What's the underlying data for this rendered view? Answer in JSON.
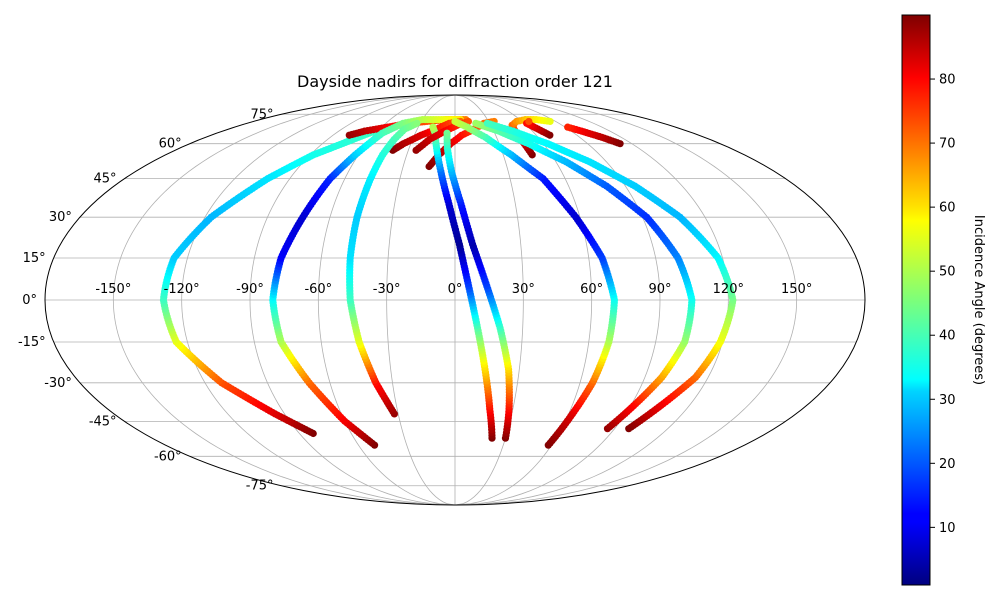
{
  "chart_data": {
    "type": "scatter",
    "projection": "mollweide",
    "title": "Dayside nadirs for diffraction order 121",
    "xlabel": "",
    "ylabel": "",
    "xlim": [
      -180,
      180
    ],
    "ylim": [
      -90,
      90
    ],
    "grid": true,
    "x_ticks": [
      "-150°",
      "-120°",
      "-90°",
      "-60°",
      "-30°",
      "0°",
      "30°",
      "60°",
      "90°",
      "120°",
      "150°"
    ],
    "x_tick_values": [
      -150,
      -120,
      -90,
      -60,
      -30,
      0,
      30,
      60,
      90,
      120,
      150
    ],
    "y_ticks": [
      "75°",
      "60°",
      "45°",
      "30°",
      "15°",
      "0°",
      "-15°",
      "-30°",
      "-45°",
      "-60°",
      "-75°"
    ],
    "y_tick_values": [
      75,
      60,
      45,
      30,
      15,
      0,
      -15,
      -30,
      -45,
      -60,
      -75
    ],
    "colorbar": {
      "label": "Incidence Angle (degrees)",
      "colormap": "jet",
      "range": [
        1,
        90
      ],
      "ticks": [
        "10",
        "20",
        "30",
        "40",
        "50",
        "60",
        "70",
        "80"
      ],
      "tick_values": [
        10,
        20,
        30,
        40,
        50,
        60,
        70,
        80
      ]
    },
    "series": [
      {
        "points": [
          [
            -82,
            -50,
            90
          ],
          [
            -95,
            -42,
            82
          ],
          [
            -112,
            -30,
            72
          ],
          [
            -125,
            -15,
            55
          ],
          [
            -128,
            0,
            40
          ],
          [
            -126,
            15,
            30
          ],
          [
            -117,
            30,
            28
          ],
          [
            -102,
            45,
            32
          ],
          [
            -88,
            55,
            36
          ],
          [
            -72,
            62,
            38
          ],
          [
            -60,
            67,
            40
          ]
        ]
      },
      {
        "points": [
          [
            -78,
            64,
            88
          ],
          [
            -70,
            66,
            85
          ],
          [
            -55,
            68,
            80
          ],
          [
            -40,
            70,
            76
          ],
          [
            -25,
            71,
            72
          ],
          [
            -8,
            72,
            70
          ],
          [
            10,
            72,
            68
          ]
        ]
      },
      {
        "points": [
          [
            -50,
            -55,
            90
          ],
          [
            -60,
            -45,
            80
          ],
          [
            -70,
            -30,
            70
          ],
          [
            -78,
            -15,
            50
          ],
          [
            -80,
            0,
            35
          ],
          [
            -78,
            15,
            12
          ],
          [
            -73,
            30,
            8
          ],
          [
            -68,
            45,
            15
          ],
          [
            -62,
            55,
            30
          ],
          [
            -55,
            65,
            40
          ],
          [
            -45,
            70,
            45
          ],
          [
            -30,
            72,
            50
          ],
          [
            -10,
            72,
            55
          ],
          [
            5,
            72,
            58
          ]
        ]
      },
      {
        "points": [
          [
            -40,
            57,
            90
          ],
          [
            -35,
            60,
            86
          ],
          [
            -25,
            64,
            82
          ],
          [
            -15,
            67,
            78
          ],
          [
            -5,
            70,
            74
          ],
          [
            5,
            71,
            70
          ]
        ]
      },
      {
        "points": [
          [
            -32,
            -42,
            88
          ],
          [
            -38,
            -30,
            78
          ],
          [
            -43,
            -15,
            55
          ],
          [
            -46,
            0,
            40
          ],
          [
            -47,
            15,
            32
          ],
          [
            -47,
            30,
            30
          ],
          [
            -46,
            45,
            33
          ],
          [
            -45,
            55,
            37
          ],
          [
            -43,
            62,
            40
          ],
          [
            -40,
            67,
            43
          ],
          [
            -33,
            70,
            46
          ]
        ]
      },
      {
        "points": [
          [
            -15,
            50,
            90
          ],
          [
            -10,
            55,
            86
          ],
          [
            -3,
            60,
            82
          ],
          [
            5,
            64,
            78
          ],
          [
            15,
            67,
            74
          ],
          [
            25,
            70,
            70
          ],
          [
            35,
            71,
            68
          ]
        ]
      },
      {
        "points": [
          [
            22,
            -52,
            90
          ],
          [
            18,
            -40,
            78
          ],
          [
            14,
            -25,
            60
          ],
          [
            10,
            -10,
            42
          ],
          [
            6,
            5,
            18
          ],
          [
            2,
            20,
            3
          ],
          [
            -3,
            35,
            8
          ],
          [
            -8,
            48,
            22
          ],
          [
            -12,
            58,
            36
          ],
          [
            -15,
            65,
            44
          ],
          [
            -18,
            68,
            50
          ]
        ]
      },
      {
        "points": [
          [
            -25,
            57,
            88
          ],
          [
            -18,
            62,
            84
          ],
          [
            -8,
            66,
            80
          ],
          [
            2,
            69,
            76
          ],
          [
            12,
            71,
            72
          ]
        ]
      },
      {
        "points": [
          [
            30,
            -52,
            90
          ],
          [
            28,
            -40,
            78
          ],
          [
            25,
            -25,
            60
          ],
          [
            20,
            -10,
            40
          ],
          [
            14,
            5,
            18
          ],
          [
            8,
            20,
            5
          ],
          [
            3,
            35,
            14
          ],
          [
            -2,
            48,
            28
          ],
          [
            -5,
            58,
            38
          ],
          [
            -6,
            65,
            44
          ]
        ]
      },
      {
        "points": [
          [
            58,
            -55,
            90
          ],
          [
            62,
            -42,
            82
          ],
          [
            66,
            -30,
            70
          ],
          [
            69,
            -15,
            50
          ],
          [
            70,
            0,
            36
          ],
          [
            66,
            15,
            18
          ],
          [
            58,
            30,
            8
          ],
          [
            48,
            45,
            14
          ],
          [
            35,
            55,
            28
          ],
          [
            22,
            63,
            40
          ],
          [
            10,
            68,
            48
          ],
          [
            0,
            71,
            52
          ]
        ]
      },
      {
        "points": [
          [
            48,
            55,
            90
          ],
          [
            47,
            60,
            84
          ],
          [
            46,
            65,
            76
          ],
          [
            48,
            69,
            70
          ],
          [
            55,
            71,
            66
          ],
          [
            65,
            72,
            62
          ],
          [
            75,
            72,
            58
          ],
          [
            85,
            71,
            55
          ]
        ]
      },
      {
        "points": [
          [
            86,
            -48,
            88
          ],
          [
            92,
            -38,
            78
          ],
          [
            98,
            -28,
            65
          ],
          [
            103,
            -15,
            48
          ],
          [
            104,
            0,
            36
          ],
          [
            100,
            15,
            24
          ],
          [
            92,
            30,
            16
          ],
          [
            80,
            42,
            20
          ],
          [
            66,
            52,
            28
          ],
          [
            50,
            60,
            36
          ],
          [
            34,
            66,
            42
          ],
          [
            18,
            70,
            48
          ]
        ]
      },
      {
        "points": [
          [
            70,
            64,
            90
          ],
          [
            66,
            67,
            84
          ],
          [
            62,
            70,
            78
          ],
          [
            66,
            71,
            72
          ]
        ]
      },
      {
        "points": [
          [
            98,
            -48,
            90
          ],
          [
            106,
            -38,
            80
          ],
          [
            114,
            -28,
            70
          ],
          [
            119,
            -15,
            56
          ],
          [
            122,
            0,
            45
          ],
          [
            118,
            15,
            34
          ],
          [
            108,
            30,
            28
          ],
          [
            95,
            42,
            30
          ],
          [
            80,
            52,
            32
          ],
          [
            63,
            60,
            34
          ],
          [
            45,
            66,
            37
          ],
          [
            28,
            70,
            40
          ]
        ]
      },
      {
        "points": [
          [
            112,
            60,
            90
          ],
          [
            106,
            63,
            85
          ],
          [
            98,
            66,
            80
          ],
          [
            92,
            68,
            76
          ]
        ]
      }
    ]
  }
}
